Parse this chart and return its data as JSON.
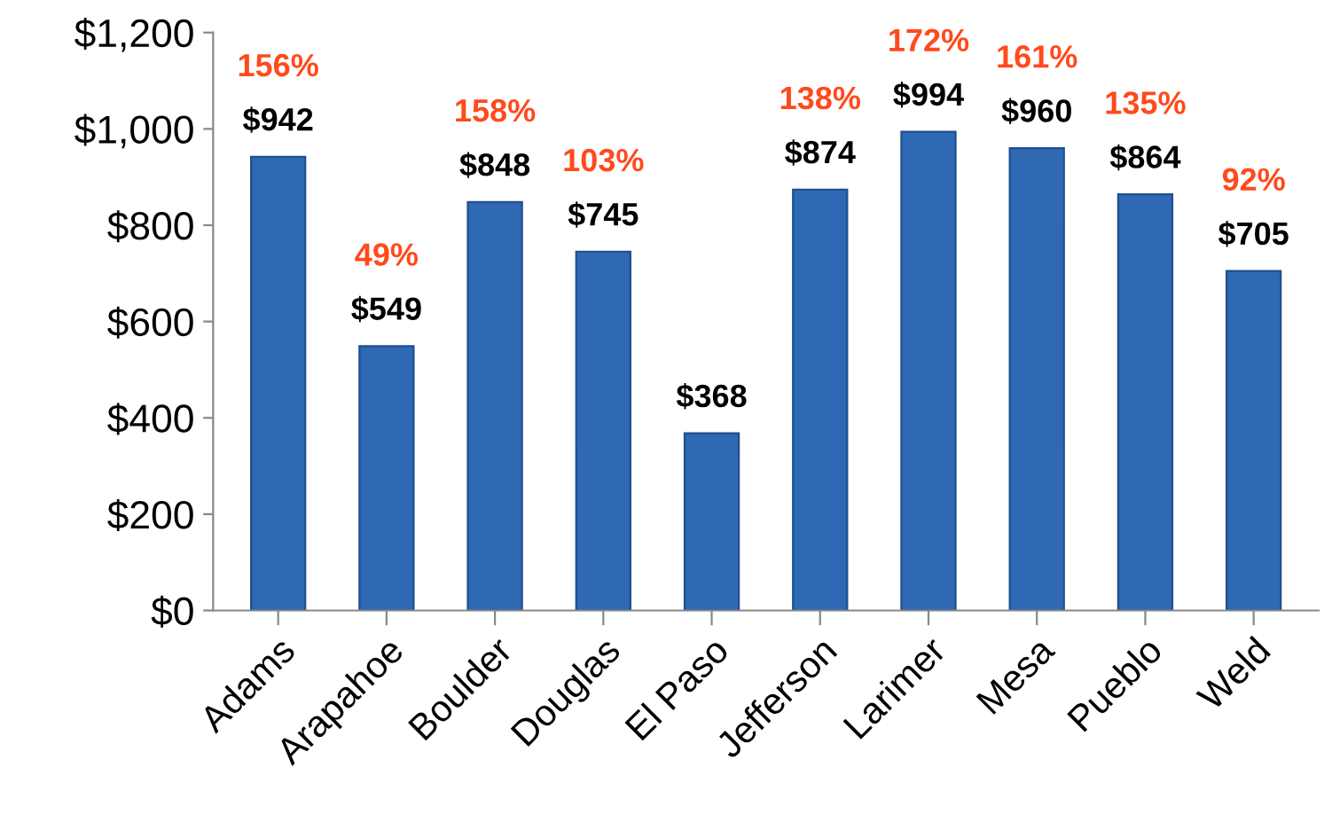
{
  "chart_data": {
    "type": "bar",
    "categories": [
      "Adams",
      "Arapahoe",
      "Boulder",
      "Douglas",
      "El Paso",
      "Jefferson",
      "Larimer",
      "Mesa",
      "Pueblo",
      "Weld"
    ],
    "values": [
      942,
      549,
      848,
      745,
      368,
      874,
      994,
      960,
      864,
      705
    ],
    "color": "#2f69b3",
    "data_labels": true,
    "value_labels": [
      "$942",
      "$549",
      "$848",
      "$745",
      "$368",
      "$874",
      "$994",
      "$960",
      "$864",
      "$705"
    ],
    "ylim": [
      0,
      1200
    ],
    "yticks": [
      {
        "value": 0,
        "label": "$0"
      },
      {
        "value": 200,
        "label": "$200"
      },
      {
        "value": 400,
        "label": "$400"
      },
      {
        "value": 600,
        "label": "$600"
      },
      {
        "value": 800,
        "label": "$800"
      },
      {
        "value": 1000,
        "label": "$1,000"
      },
      {
        "value": 1200,
        "label": "$1,200"
      }
    ],
    "annotations": [
      {
        "text": "156%",
        "x": "Adams",
        "y": 942
      },
      {
        "text": "49%",
        "x": "Arapahoe",
        "y": 549
      },
      {
        "text": "158%",
        "x": "Boulder",
        "y": 848
      },
      {
        "text": "103%",
        "x": "Douglas",
        "y": 745
      },
      {
        "text": "138%",
        "x": "Jefferson",
        "y": 874
      },
      {
        "text": "172%",
        "x": "Larimer",
        "y": 994
      },
      {
        "text": "161%",
        "x": "Mesa",
        "y": 960
      },
      {
        "text": "135%",
        "x": "Pueblo",
        "y": 864
      },
      {
        "text": "92%",
        "x": "Weld",
        "y": 705
      }
    ],
    "grid": false,
    "legend": false
  }
}
